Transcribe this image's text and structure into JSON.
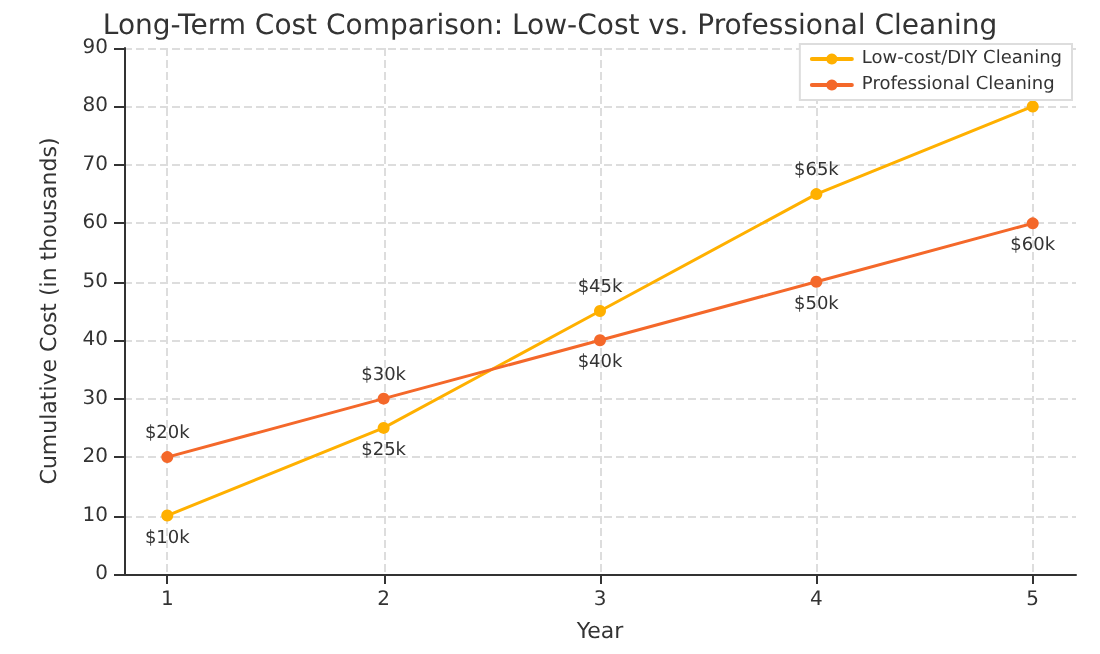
{
  "chart_data": {
    "type": "line",
    "title": "Long-Term Cost Comparison: Low-Cost vs. Professional Cleaning",
    "xlabel": "Year",
    "ylabel": "Cumulative Cost (in thousands)",
    "x": [
      1,
      2,
      3,
      4,
      5
    ],
    "xlim": [
      0.8,
      5.2
    ],
    "xticks": [
      1,
      2,
      3,
      4,
      5
    ],
    "ylim": [
      0,
      90
    ],
    "yticks": [
      0,
      10,
      20,
      30,
      40,
      50,
      60,
      70,
      80,
      90
    ],
    "grid": true,
    "legend": "top right",
    "marker": "circle",
    "line_style": "solid",
    "series": [
      {
        "name": "Low-cost/DIY Cleaning",
        "color": "#ffb000",
        "values": [
          10,
          25,
          45,
          65,
          80
        ],
        "value_labels": [
          "$10k",
          "$25k",
          "$45k",
          "$65k",
          null
        ]
      },
      {
        "name": "Professional Cleaning",
        "color": "#f4682a",
        "values": [
          20,
          30,
          40,
          50,
          60
        ],
        "value_labels": [
          "$20k",
          "$30k",
          "$40k",
          "$50k",
          "$60k"
        ]
      }
    ]
  }
}
